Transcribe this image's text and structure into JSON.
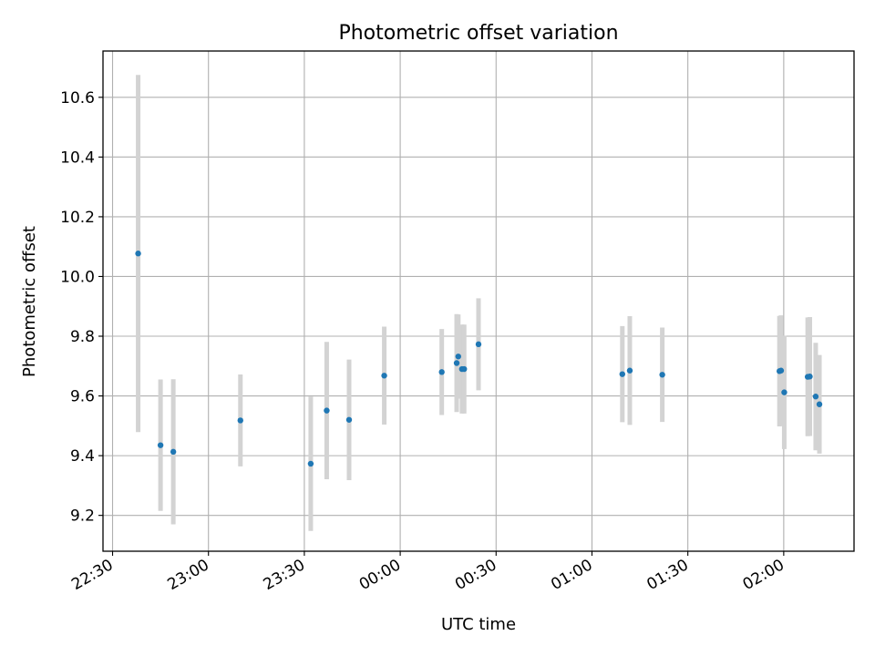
{
  "chart_data": {
    "type": "scatter",
    "title": "Photometric offset variation",
    "xlabel": "UTC time",
    "ylabel": "Photometric offset",
    "x_axis": {
      "kind": "time",
      "range": [
        "22:27",
        "02:22"
      ],
      "ticks": [
        "22:30",
        "23:00",
        "23:30",
        "00:00",
        "00:30",
        "01:00",
        "01:30",
        "02:00"
      ]
    },
    "y_axis": {
      "range": [
        9.08,
        10.755
      ],
      "ticks": [
        "9.2",
        "9.4",
        "9.6",
        "9.8",
        "10.0",
        "10.2",
        "10.4",
        "10.6"
      ]
    },
    "grid": true,
    "marker_color": "#1f77b4",
    "errorbar_color": "#d3d3d3",
    "series": [
      {
        "points": [
          {
            "x": "22:38:00",
            "y": 10.077,
            "yerr": 0.598
          },
          {
            "x": "22:45:00",
            "y": 9.435,
            "yerr": 0.22
          },
          {
            "x": "22:49:00",
            "y": 9.413,
            "yerr": 0.243
          },
          {
            "x": "23:10:00",
            "y": 9.518,
            "yerr": 0.154
          },
          {
            "x": "23:32:00",
            "y": 9.373,
            "yerr": 0.225
          },
          {
            "x": "23:37:00",
            "y": 9.551,
            "yerr": 0.23
          },
          {
            "x": "23:44:00",
            "y": 9.52,
            "yerr": 0.202
          },
          {
            "x": "23:55:00",
            "y": 9.668,
            "yerr": 0.164
          },
          {
            "x": "00:13:00",
            "y": 9.68,
            "yerr": 0.144
          },
          {
            "x": "00:17:40",
            "y": 9.71,
            "yerr": 0.164
          },
          {
            "x": "00:18:10",
            "y": 9.732,
            "yerr": 0.141
          },
          {
            "x": "00:19:20",
            "y": 9.69,
            "yerr": 0.149
          },
          {
            "x": "00:20:00",
            "y": 9.69,
            "yerr": 0.149
          },
          {
            "x": "00:24:30",
            "y": 9.773,
            "yerr": 0.154
          },
          {
            "x": "01:09:30",
            "y": 9.673,
            "yerr": 0.161
          },
          {
            "x": "01:11:50",
            "y": 9.685,
            "yerr": 0.182
          },
          {
            "x": "01:22:00",
            "y": 9.671,
            "yerr": 0.158
          },
          {
            "x": "01:58:40",
            "y": 9.683,
            "yerr": 0.185
          },
          {
            "x": "01:59:10",
            "y": 9.685,
            "yerr": 0.185
          },
          {
            "x": "02:00:10",
            "y": 9.612,
            "yerr": 0.19
          },
          {
            "x": "02:07:30",
            "y": 9.664,
            "yerr": 0.199
          },
          {
            "x": "02:08:10",
            "y": 9.665,
            "yerr": 0.199
          },
          {
            "x": "02:10:00",
            "y": 9.598,
            "yerr": 0.18
          },
          {
            "x": "02:11:10",
            "y": 9.572,
            "yerr": 0.165
          }
        ]
      }
    ]
  }
}
